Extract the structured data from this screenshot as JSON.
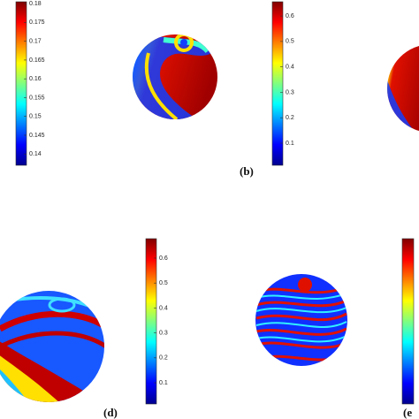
{
  "colorbars": [
    {
      "range": [
        0.137,
        0.1805
      ],
      "ticks": [
        0.18,
        0.175,
        0.17,
        0.165,
        0.16,
        0.155,
        0.15,
        0.145,
        0.14
      ]
    },
    {
      "range": [
        0.013,
        0.656
      ],
      "ticks": [
        0.6,
        0.5,
        0.4,
        0.3,
        0.2,
        0.1
      ]
    },
    {
      "range": [
        0.015,
        0.678
      ],
      "ticks": [
        0.6,
        0.5,
        0.4,
        0.3,
        0.2,
        0.1
      ]
    }
  ],
  "panels": [
    {
      "label": "(b)"
    },
    {
      "label": "(d)"
    },
    {
      "label": "(e"
    }
  ]
}
